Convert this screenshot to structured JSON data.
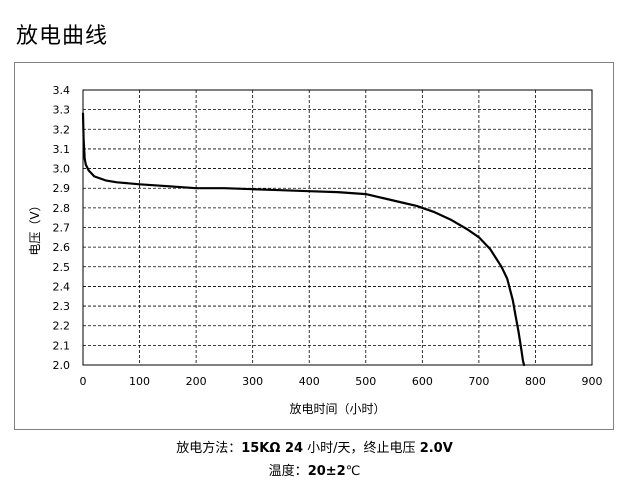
{
  "page_title": "放电曲线",
  "chart_data": {
    "type": "line",
    "xlabel": "放电时间（小时）",
    "ylabel": "电压（V）",
    "xlim": [
      0,
      900
    ],
    "ylim": [
      2.0,
      3.4
    ],
    "x_ticks": [
      "0",
      "100",
      "200",
      "300",
      "400",
      "500",
      "600",
      "700",
      "800",
      "900"
    ],
    "y_ticks": [
      "2.0",
      "2.1",
      "2.2",
      "2.3",
      "2.4",
      "2.5",
      "2.6",
      "2.7",
      "2.8",
      "2.9",
      "3.0",
      "3.1",
      "3.2",
      "3.3",
      "3.4"
    ],
    "grid": true,
    "series": [
      {
        "x": [
          0,
          1,
          3,
          5,
          10,
          20,
          40,
          60,
          100,
          150,
          200,
          250,
          300,
          350,
          400,
          450,
          500,
          530,
          560,
          590,
          620,
          650,
          680,
          700,
          720,
          740,
          750,
          760,
          765,
          770,
          775,
          778,
          780
        ],
        "y": [
          3.28,
          3.15,
          3.05,
          3.02,
          2.99,
          2.96,
          2.94,
          2.93,
          2.92,
          2.91,
          2.9,
          2.9,
          2.895,
          2.89,
          2.885,
          2.88,
          2.87,
          2.85,
          2.83,
          2.81,
          2.78,
          2.74,
          2.69,
          2.65,
          2.59,
          2.5,
          2.44,
          2.33,
          2.25,
          2.17,
          2.08,
          2.02,
          2.0
        ]
      }
    ]
  },
  "footer": {
    "line1_prefix": "放电方法：",
    "line1_load": "15KΩ 24",
    "line1_mid": " 小时/天，终止电压 ",
    "line1_end": "2.0V",
    "line2_prefix": "温度：",
    "line2_value": "20±2",
    "line2_unit": "℃"
  }
}
